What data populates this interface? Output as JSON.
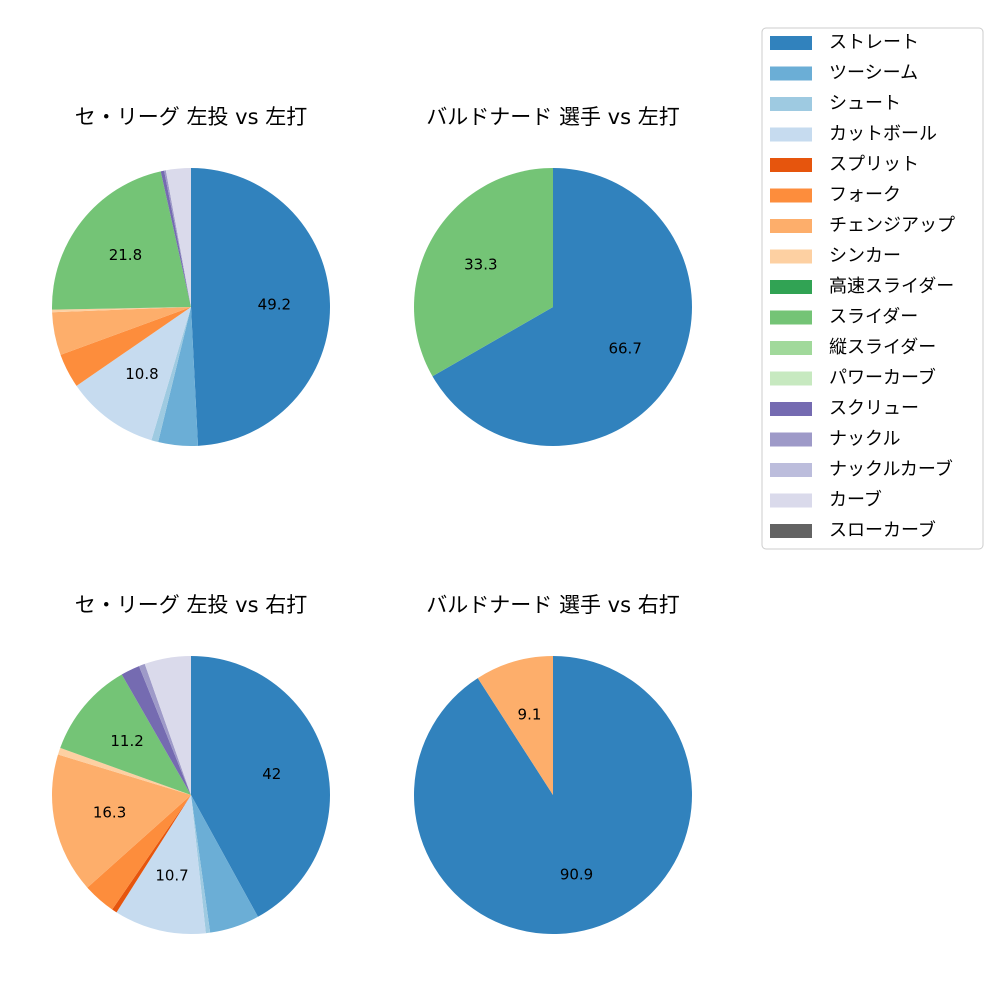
{
  "chart_data": [
    {
      "type": "pie",
      "title": "セ・リーグ 左投 vs 左打",
      "categories": [
        "ストレート",
        "ツーシーム",
        "シュート",
        "カットボール",
        "スプリット",
        "フォーク",
        "チェンジアップ",
        "シンカー",
        "高速スライダー",
        "スライダー",
        "縦スライダー",
        "パワーカーブ",
        "スクリュー",
        "ナックル",
        "ナックルカーブ",
        "カーブ",
        "スローカーブ"
      ],
      "colors": [
        "#3182bd",
        "#6baed6",
        "#9ecae1",
        "#c6dbef",
        "#e6550d",
        "#fd8d3c",
        "#fdae6b",
        "#fdd0a2",
        "#31a354",
        "#74c476",
        "#a1d99b",
        "#c7e9c0",
        "#756bb1",
        "#9e9ac8",
        "#bcbddc",
        "#dadaeb",
        "#636363"
      ],
      "values": [
        49.2,
        4.6,
        0.8,
        10.8,
        0,
        4.0,
        5.0,
        0.3,
        0,
        21.8,
        0,
        0,
        0.4,
        0.2,
        0,
        2.9,
        0
      ],
      "legend": "upper right"
    },
    {
      "type": "pie",
      "title": "バルドナード 選手 vs 左打",
      "categories": [
        "ストレート",
        "ツーシーム",
        "シュート",
        "カットボール",
        "スプリット",
        "フォーク",
        "チェンジアップ",
        "シンカー",
        "高速スライダー",
        "スライダー",
        "縦スライダー",
        "パワーカーブ",
        "スクリュー",
        "ナックル",
        "ナックルカーブ",
        "カーブ",
        "スローカーブ"
      ],
      "colors": [
        "#3182bd",
        "#6baed6",
        "#9ecae1",
        "#c6dbef",
        "#e6550d",
        "#fd8d3c",
        "#fdae6b",
        "#fdd0a2",
        "#31a354",
        "#74c476",
        "#a1d99b",
        "#c7e9c0",
        "#756bb1",
        "#9e9ac8",
        "#bcbddc",
        "#dadaeb",
        "#636363"
      ],
      "values": [
        66.7,
        0,
        0,
        0,
        0,
        0,
        0,
        0,
        0,
        33.3,
        0,
        0,
        0,
        0,
        0,
        0,
        0
      ]
    },
    {
      "type": "pie",
      "title": "セ・リーグ 左投 vs 右打",
      "categories": [
        "ストレート",
        "ツーシーム",
        "シュート",
        "カットボール",
        "スプリット",
        "フォーク",
        "チェンジアップ",
        "シンカー",
        "高速スライダー",
        "スライダー",
        "縦スライダー",
        "パワーカーブ",
        "スクリュー",
        "ナックル",
        "ナックルカーブ",
        "カーブ",
        "スローカーブ"
      ],
      "colors": [
        "#3182bd",
        "#6baed6",
        "#9ecae1",
        "#c6dbef",
        "#e6550d",
        "#fd8d3c",
        "#fdae6b",
        "#fdd0a2",
        "#31a354",
        "#74c476",
        "#a1d99b",
        "#c7e9c0",
        "#756bb1",
        "#9e9ac8",
        "#bcbddc",
        "#dadaeb",
        "#636363"
      ],
      "values": [
        42.0,
        5.8,
        0.5,
        10.7,
        0.6,
        3.8,
        16.3,
        0.8,
        0,
        11.2,
        0,
        0,
        2.2,
        0.7,
        0,
        5.4,
        0
      ]
    },
    {
      "type": "pie",
      "title": "バルドナード 選手 vs 右打",
      "categories": [
        "ストレート",
        "ツーシーム",
        "シュート",
        "カットボール",
        "スプリット",
        "フォーク",
        "チェンジアップ",
        "シンカー",
        "高速スライダー",
        "スライダー",
        "縦スライダー",
        "パワーカーブ",
        "スクリュー",
        "ナックル",
        "ナックルカーブ",
        "カーブ",
        "スローカーブ"
      ],
      "colors": [
        "#3182bd",
        "#6baed6",
        "#9ecae1",
        "#c6dbef",
        "#e6550d",
        "#fd8d3c",
        "#fdae6b",
        "#fdd0a2",
        "#31a354",
        "#74c476",
        "#a1d99b",
        "#c7e9c0",
        "#756bb1",
        "#9e9ac8",
        "#bcbddc",
        "#dadaeb",
        "#636363"
      ],
      "values": [
        90.9,
        0,
        0,
        0,
        0,
        0,
        9.1,
        0,
        0,
        0,
        0,
        0,
        0,
        0,
        0,
        0,
        0
      ]
    }
  ]
}
